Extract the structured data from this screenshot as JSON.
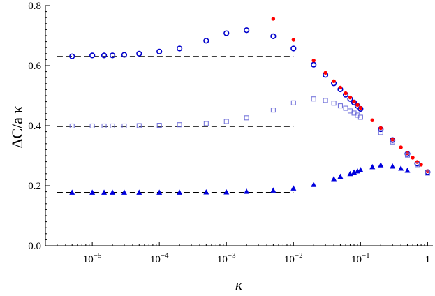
{
  "chart_data": {
    "type": "scatter",
    "xlabel": "κ",
    "ylabel": "ΔC/a κ",
    "xscale": "log",
    "xlim": [
      2e-06,
      1.2
    ],
    "ylim": [
      0.0,
      0.8
    ],
    "grid": false,
    "legend": "none",
    "x_ticks": [
      {
        "value": 1e-05,
        "mantissa": "10",
        "exp": "−5"
      },
      {
        "value": 0.0001,
        "mantissa": "10",
        "exp": "−4"
      },
      {
        "value": 0.001,
        "mantissa": "10",
        "exp": "−3"
      },
      {
        "value": 0.01,
        "mantissa": "10",
        "exp": "−2"
      },
      {
        "value": 0.1,
        "mantissa": "10",
        "exp": "−1"
      },
      {
        "value": 1,
        "mantissa": "1",
        "exp": ""
      }
    ],
    "y_ticks": [
      {
        "value": 0.0,
        "label": "0.0"
      },
      {
        "value": 0.2,
        "label": "0.2"
      },
      {
        "value": 0.4,
        "label": "0.4"
      },
      {
        "value": 0.6,
        "label": "0.6"
      },
      {
        "value": 0.8,
        "label": "0.8"
      }
    ],
    "reference_lines": [
      {
        "y": 0.63,
        "x_from": 3e-06,
        "x_to": 0.01,
        "style": "dashed",
        "color": "#000000"
      },
      {
        "y": 0.398,
        "x_from": 3e-06,
        "x_to": 0.01,
        "style": "dashed",
        "color": "#000000"
      },
      {
        "y": 0.177,
        "x_from": 3e-06,
        "x_to": 0.01,
        "style": "dashed",
        "color": "#000000"
      }
    ],
    "series": [
      {
        "marker": "open-circle",
        "color": "#0000cc",
        "points": [
          [
            5e-06,
            0.631
          ],
          [
            1e-05,
            0.634
          ],
          [
            1.5e-05,
            0.634
          ],
          [
            2e-05,
            0.634
          ],
          [
            3e-05,
            0.636
          ],
          [
            5e-05,
            0.64
          ],
          [
            0.0001,
            0.647
          ],
          [
            0.0002,
            0.657
          ],
          [
            0.0005,
            0.683
          ],
          [
            0.001,
            0.708
          ],
          [
            0.002,
            0.718
          ],
          [
            0.005,
            0.698
          ],
          [
            0.01,
            0.657
          ],
          [
            0.02,
            0.603
          ],
          [
            0.03,
            0.569
          ],
          [
            0.04,
            0.541
          ],
          [
            0.05,
            0.521
          ],
          [
            0.06,
            0.503
          ],
          [
            0.07,
            0.489
          ],
          [
            0.08,
            0.477
          ],
          [
            0.09,
            0.466
          ],
          [
            0.1,
            0.456
          ],
          [
            0.2,
            0.388
          ],
          [
            0.3,
            0.352
          ],
          [
            0.5,
            0.306
          ],
          [
            0.7,
            0.274
          ],
          [
            1.0,
            0.245
          ]
        ]
      },
      {
        "marker": "filled-circle",
        "color": "#ff0000",
        "points": [
          [
            0.005,
            0.756
          ],
          [
            0.01,
            0.686
          ],
          [
            0.02,
            0.617
          ],
          [
            0.03,
            0.576
          ],
          [
            0.04,
            0.548
          ],
          [
            0.05,
            0.527
          ],
          [
            0.06,
            0.508
          ],
          [
            0.07,
            0.494
          ],
          [
            0.08,
            0.48
          ],
          [
            0.09,
            0.469
          ],
          [
            0.1,
            0.459
          ],
          [
            0.15,
            0.418
          ],
          [
            0.2,
            0.392
          ],
          [
            0.3,
            0.354
          ],
          [
            0.4,
            0.328
          ],
          [
            0.5,
            0.308
          ],
          [
            0.6,
            0.293
          ],
          [
            0.7,
            0.279
          ],
          [
            0.8,
            0.27
          ],
          [
            1.0,
            0.248
          ]
        ]
      },
      {
        "marker": "open-square",
        "color": "#6a6ad8",
        "points": [
          [
            5e-06,
            0.399
          ],
          [
            1e-05,
            0.399
          ],
          [
            1.5e-05,
            0.399
          ],
          [
            2e-05,
            0.399
          ],
          [
            3e-05,
            0.399
          ],
          [
            5e-05,
            0.4
          ],
          [
            0.0001,
            0.401
          ],
          [
            0.0002,
            0.403
          ],
          [
            0.0005,
            0.407
          ],
          [
            0.001,
            0.414
          ],
          [
            0.002,
            0.426
          ],
          [
            0.005,
            0.452
          ],
          [
            0.01,
            0.476
          ],
          [
            0.02,
            0.489
          ],
          [
            0.03,
            0.484
          ],
          [
            0.04,
            0.475
          ],
          [
            0.05,
            0.466
          ],
          [
            0.06,
            0.458
          ],
          [
            0.07,
            0.449
          ],
          [
            0.08,
            0.442
          ],
          [
            0.09,
            0.435
          ],
          [
            0.1,
            0.428
          ],
          [
            0.2,
            0.377
          ],
          [
            0.3,
            0.346
          ],
          [
            0.5,
            0.302
          ],
          [
            0.7,
            0.27
          ],
          [
            1.0,
            0.242
          ]
        ]
      },
      {
        "marker": "filled-triangle",
        "color": "#0000dd",
        "points": [
          [
            5e-06,
            0.177
          ],
          [
            1e-05,
            0.177
          ],
          [
            1.5e-05,
            0.177
          ],
          [
            2e-05,
            0.177
          ],
          [
            3e-05,
            0.177
          ],
          [
            5e-05,
            0.177
          ],
          [
            0.0001,
            0.177
          ],
          [
            0.0002,
            0.177
          ],
          [
            0.0005,
            0.178
          ],
          [
            0.001,
            0.178
          ],
          [
            0.002,
            0.18
          ],
          [
            0.005,
            0.184
          ],
          [
            0.01,
            0.191
          ],
          [
            0.02,
            0.203
          ],
          [
            0.04,
            0.222
          ],
          [
            0.05,
            0.23
          ],
          [
            0.07,
            0.239
          ],
          [
            0.08,
            0.244
          ],
          [
            0.09,
            0.248
          ],
          [
            0.1,
            0.252
          ],
          [
            0.15,
            0.262
          ],
          [
            0.2,
            0.268
          ],
          [
            0.3,
            0.264
          ],
          [
            0.4,
            0.257
          ],
          [
            0.5,
            0.25
          ]
        ]
      }
    ]
  }
}
